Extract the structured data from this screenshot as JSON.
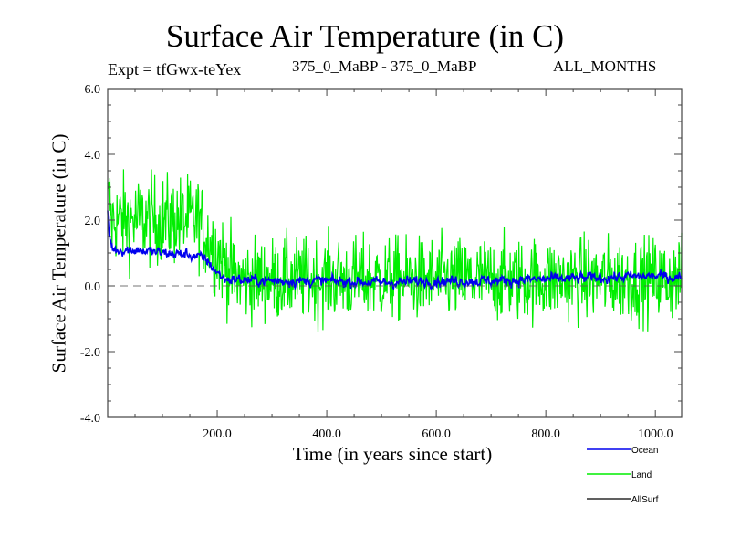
{
  "chart_data": {
    "type": "line",
    "title": "Surface Air Temperature (in C)",
    "annotations": {
      "experiment": "Expt = tfGwx-teYex",
      "comparison": "375_0_MaBP - 375_0_MaBP",
      "period": "ALL_MONTHS"
    },
    "xlabel": "Time (in years since start)",
    "ylabel": "Surface Air Temperature (in C)",
    "xlim": [
      0,
      1048
    ],
    "ylim": [
      -4.0,
      6.0
    ],
    "xticks": [
      200,
      400,
      600,
      800,
      1000
    ],
    "xtick_labels": [
      "200.0",
      "400.0",
      "600.0",
      "800.0",
      "1000.0"
    ],
    "xminor_step": 50,
    "yticks": [
      -4,
      -2,
      0,
      2,
      4,
      6
    ],
    "ytick_labels": [
      "-4.0",
      "-2.0",
      "0.0",
      "2.0",
      "4.0",
      "6.0"
    ],
    "yminor_step": 0.5,
    "zero_line": "dashed",
    "legend_position": "bottom-right",
    "series": [
      {
        "name": "Land",
        "color": "#00ee00",
        "description": "annual land-mean anomaly; ~2.2 mean with range ~0.2–3.8 for years 0–170, dropping to ~0.2 mean near year 220, then noisy around 0.2 with range ~-2.5 to 2.6",
        "segments": [
          {
            "x_start": 0,
            "x_end": 5,
            "mean": 2.5,
            "spread": 1.5
          },
          {
            "x_start": 5,
            "x_end": 170,
            "mean": 2.0,
            "spread": 1.6
          },
          {
            "x_start": 170,
            "x_end": 230,
            "mean_start": 1.8,
            "mean_end": 0.3,
            "spread": 1.6
          },
          {
            "x_start": 230,
            "x_end": 1048,
            "mean": 0.2,
            "spread": 1.5
          }
        ],
        "max": 4.0,
        "min": -2.5
      },
      {
        "name": "Ocean",
        "color": "#0000ee",
        "description": "annual ocean-mean anomaly; starts ~2.3, drops to ~1.1 within first years, ~0.9 until year ~180, falls to ~0.15 by year ~210, ~0.15 thereafter with slight rise to ~0.3 near year 1000",
        "points": [
          [
            0,
            2.3
          ],
          [
            3,
            1.5
          ],
          [
            10,
            1.1
          ],
          [
            50,
            1.1
          ],
          [
            100,
            1.0
          ],
          [
            150,
            0.95
          ],
          [
            180,
            0.8
          ],
          [
            200,
            0.4
          ],
          [
            215,
            0.2
          ],
          [
            300,
            0.15
          ],
          [
            400,
            0.15
          ],
          [
            500,
            0.1
          ],
          [
            600,
            0.15
          ],
          [
            700,
            0.15
          ],
          [
            800,
            0.2
          ],
          [
            900,
            0.25
          ],
          [
            1000,
            0.3
          ],
          [
            1048,
            0.25
          ]
        ],
        "noise": 0.12
      },
      {
        "name": "AllSurf",
        "color": "#000000",
        "points": []
      }
    ]
  }
}
